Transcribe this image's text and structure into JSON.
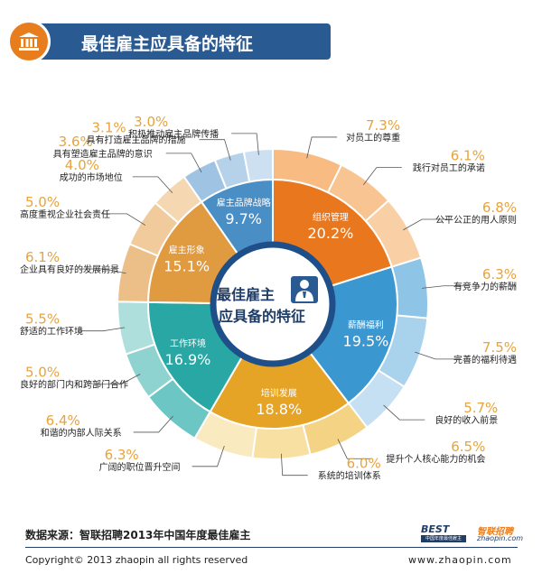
{
  "header": {
    "title": "最佳雇主应具备的特征"
  },
  "center": {
    "line1": "最佳雇主",
    "line2": "应具备的特征"
  },
  "chart_data": {
    "type": "pie",
    "inner": [
      {
        "label": "组织管理",
        "value": 20.2,
        "value_text": "20.2%",
        "color": "#e8771e"
      },
      {
        "label": "薪酬福利",
        "value": 19.5,
        "value_text": "19.5%",
        "color": "#3b97cf"
      },
      {
        "label": "培训发展",
        "value": 18.8,
        "value_text": "18.8%",
        "color": "#e6a427"
      },
      {
        "label": "工作环境",
        "value": 16.9,
        "value_text": "16.9%",
        "color": "#29a7a5"
      },
      {
        "label": "雇主形象",
        "value": 15.1,
        "value_text": "15.1%",
        "color": "#e09a40"
      },
      {
        "label": "雇主品牌战略",
        "value": 9.7,
        "value_text": "9.7%",
        "color": "#4a8ec6"
      }
    ],
    "outer": [
      {
        "label": "对员工的尊重",
        "value": 7.3,
        "value_text": "7.3%",
        "color": "#f8bb82",
        "group": 0
      },
      {
        "label": "践行对员工的承诺",
        "value": 6.1,
        "value_text": "6.1%",
        "color": "#f8c592",
        "group": 0
      },
      {
        "label": "公平公正的用人原则",
        "value": 6.8,
        "value_text": "6.8%",
        "color": "#f9cfa5",
        "group": 0
      },
      {
        "label": "有竞争力的薪酬",
        "value": 6.3,
        "value_text": "6.3%",
        "color": "#8ec4e6",
        "group": 1
      },
      {
        "label": "完善的福利待遇",
        "value": 7.5,
        "value_text": "7.5%",
        "color": "#a9d2ec",
        "group": 1
      },
      {
        "label": "良好的收入前景",
        "value": 5.7,
        "value_text": "5.7%",
        "color": "#c4e0f2",
        "group": 1
      },
      {
        "label": "提升个人核心能力的机会",
        "value": 6.5,
        "value_text": "6.5%",
        "color": "#f5d385",
        "group": 2
      },
      {
        "label": "系统的培训体系",
        "value": 6.0,
        "value_text": "6.0%",
        "color": "#f8dfa2",
        "group": 2
      },
      {
        "label": "广阔的职位晋升空间",
        "value": 6.3,
        "value_text": "6.3%",
        "color": "#faeac0",
        "group": 2
      },
      {
        "label": "和谐的内部人际关系",
        "value": 6.4,
        "value_text": "6.4%",
        "color": "#6cc6c3",
        "group": 3
      },
      {
        "label": "良好的部门内和跨部门合作",
        "value": 5.0,
        "value_text": "5.0%",
        "color": "#8ed3d0",
        "group": 3
      },
      {
        "label": "舒适的工作环境",
        "value": 5.5,
        "value_text": "5.5%",
        "color": "#aedfdc",
        "group": 3
      },
      {
        "label": "企业具有良好的发展前景",
        "value": 6.1,
        "value_text": "6.1%",
        "color": "#edbf88",
        "group": 4
      },
      {
        "label": "高度重视企业社会责任",
        "value": 5.0,
        "value_text": "5.0%",
        "color": "#f1cb9c",
        "group": 4
      },
      {
        "label": "成功的市场地位",
        "value": 4.0,
        "value_text": "4.0%",
        "color": "#f5d8b2",
        "group": 4
      },
      {
        "label": "具有塑造雇主品牌的意识",
        "value": 3.6,
        "value_text": "3.6%",
        "color": "#9fc3e3",
        "group": 5
      },
      {
        "label": "具有打造雇主品牌的措施",
        "value": 3.1,
        "value_text": "3.1%",
        "color": "#b6d2eb",
        "group": 5
      },
      {
        "label": "积极推动雇主品牌传播",
        "value": 3.0,
        "value_text": "3.0%",
        "color": "#cde0f1",
        "group": 5
      }
    ],
    "value_text_color": "#e8a33c"
  },
  "footer": {
    "source": "数据来源：智联招聘2013年中国年度最佳雇主",
    "copyright": "Copyright© 2013 zhaopin all rights reserved",
    "url": "www.zhaopin.com",
    "logo_best": "BEST",
    "logo_best_sub": "中国年度最佳雇主",
    "logo_zp": "智联招聘",
    "logo_zp_sub": "zhaopin.com"
  }
}
